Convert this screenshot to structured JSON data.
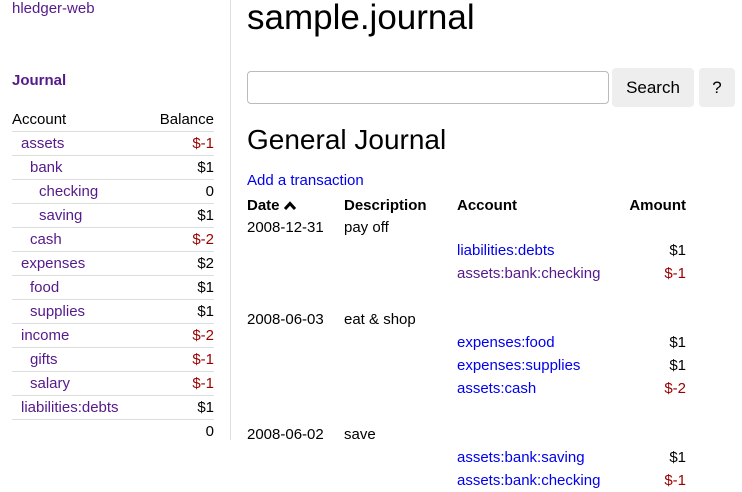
{
  "sidebar": {
    "brand": "hledger-web",
    "journal_link": "Journal",
    "headers": {
      "account": "Account",
      "balance": "Balance"
    },
    "accounts": [
      {
        "name": "assets",
        "balance": "$-1",
        "depth": 0,
        "negative": true
      },
      {
        "name": "bank",
        "balance": "$1",
        "depth": 1,
        "negative": false
      },
      {
        "name": "checking",
        "balance": "0",
        "depth": 2,
        "negative": false
      },
      {
        "name": "saving",
        "balance": "$1",
        "depth": 2,
        "negative": false
      },
      {
        "name": "cash",
        "balance": "$-2",
        "depth": 1,
        "negative": true
      },
      {
        "name": "expenses",
        "balance": "$2",
        "depth": 0,
        "negative": false
      },
      {
        "name": "food",
        "balance": "$1",
        "depth": 1,
        "negative": false
      },
      {
        "name": "supplies",
        "balance": "$1",
        "depth": 1,
        "negative": false
      },
      {
        "name": "income",
        "balance": "$-2",
        "depth": 0,
        "negative": true
      },
      {
        "name": "gifts",
        "balance": "$-1",
        "depth": 1,
        "negative": true
      },
      {
        "name": "salary",
        "balance": "$-1",
        "depth": 1,
        "negative": true
      },
      {
        "name": "liabilities:debts",
        "balance": "$1",
        "depth": 0,
        "negative": false
      }
    ],
    "total": "0"
  },
  "main": {
    "title": "sample.journal",
    "search": {
      "value": "",
      "placeholder": "",
      "button": "Search",
      "help": "?"
    },
    "heading": "General Journal",
    "add_link": "Add a transaction",
    "columns": {
      "date": "Date",
      "sort_icon": "chevron-up-icon",
      "description": "Description",
      "account": "Account",
      "amount": "Amount"
    },
    "transactions": [
      {
        "date": "2008-12-31",
        "description": "pay off",
        "postings": [
          {
            "account": "liabilities:debts",
            "amount": "$1",
            "visited": false,
            "negative": false
          },
          {
            "account": "assets:bank:checking",
            "amount": "$-1",
            "visited": true,
            "negative": true
          }
        ]
      },
      {
        "date": "2008-06-03",
        "description": "eat & shop",
        "postings": [
          {
            "account": "expenses:food",
            "amount": "$1",
            "visited": false,
            "negative": false
          },
          {
            "account": "expenses:supplies",
            "amount": "$1",
            "visited": false,
            "negative": false
          },
          {
            "account": "assets:cash",
            "amount": "$-2",
            "visited": false,
            "negative": true
          }
        ]
      },
      {
        "date": "2008-06-02",
        "description": "save",
        "postings": [
          {
            "account": "assets:bank:saving",
            "amount": "$1",
            "visited": false,
            "negative": false
          },
          {
            "account": "assets:bank:checking",
            "amount": "$-1",
            "visited": false,
            "negative": true
          }
        ]
      }
    ]
  }
}
